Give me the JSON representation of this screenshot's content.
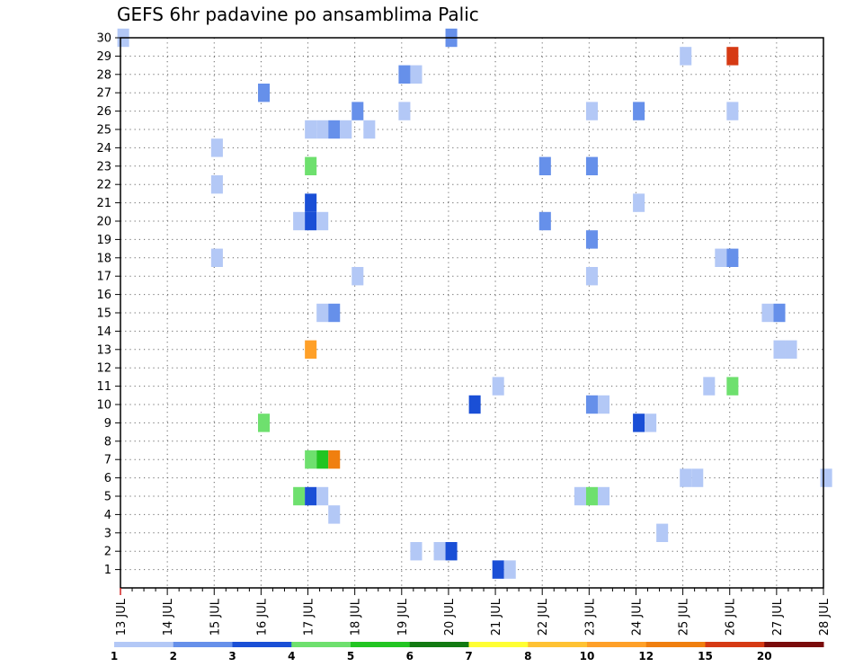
{
  "title": "GEFS 6hr padavine po ansamblima Palic",
  "chart_data": {
    "type": "heatmap",
    "title": "GEFS 6hr padavine po ansamblima Palic",
    "x_axis": {
      "ticks": [
        "13 JUL",
        "14 JUL",
        "15 JUL",
        "16 JUL",
        "17 JUL",
        "18 JUL",
        "19 JUL",
        "20 JUL",
        "21 JUL",
        "22 JUL",
        "23 JUL",
        "24 JUL",
        "25 JUL",
        "26 JUL",
        "27 JUL",
        "28 JUL"
      ],
      "range_days": [
        13,
        28
      ],
      "step_hours": 6
    },
    "y_axis": {
      "ticks": [
        "1",
        "2",
        "3",
        "4",
        "5",
        "6",
        "7",
        "8",
        "9",
        "10",
        "11",
        "12",
        "13",
        "14",
        "15",
        "16",
        "17",
        "18",
        "19",
        "20",
        "21",
        "22",
        "23",
        "24",
        "25",
        "26",
        "27",
        "28",
        "29",
        "30"
      ],
      "range": [
        0,
        30
      ]
    },
    "grid": "dotted",
    "colorbar": {
      "labels": [
        "1",
        "2",
        "3",
        "4",
        "5",
        "6",
        "7",
        "8",
        "10",
        "12",
        "15",
        "20"
      ],
      "colors": [
        "#b3c8f6",
        "#6690ea",
        "#1a4fd6",
        "#6ee06e",
        "#22c522",
        "#127a12",
        "#ffff33",
        "#ffc233",
        "#ffa028",
        "#f07f0f",
        "#d63a14",
        "#7a0b0b"
      ]
    },
    "cells": [
      {
        "day": 13.06,
        "member": 30,
        "value": 1
      },
      {
        "day": 20.06,
        "member": 30,
        "value": 2
      },
      {
        "day": 25.06,
        "member": 29,
        "value": 1
      },
      {
        "day": 26.06,
        "member": 29,
        "value": 15
      },
      {
        "day": 19.06,
        "member": 28,
        "value": 2
      },
      {
        "day": 19.31,
        "member": 28,
        "value": 1
      },
      {
        "day": 16.06,
        "member": 27,
        "value": 2
      },
      {
        "day": 18.06,
        "member": 26,
        "value": 2
      },
      {
        "day": 19.06,
        "member": 26,
        "value": 1
      },
      {
        "day": 23.06,
        "member": 26,
        "value": 1
      },
      {
        "day": 24.06,
        "member": 26,
        "value": 2
      },
      {
        "day": 26.06,
        "member": 26,
        "value": 1
      },
      {
        "day": 17.06,
        "member": 25,
        "value": 1
      },
      {
        "day": 17.31,
        "member": 25,
        "value": 1
      },
      {
        "day": 17.56,
        "member": 25,
        "value": 2
      },
      {
        "day": 17.81,
        "member": 25,
        "value": 1
      },
      {
        "day": 18.31,
        "member": 25,
        "value": 1
      },
      {
        "day": 15.06,
        "member": 24,
        "value": 1
      },
      {
        "day": 17.06,
        "member": 23,
        "value": 4
      },
      {
        "day": 22.06,
        "member": 23,
        "value": 2
      },
      {
        "day": 23.06,
        "member": 23,
        "value": 2
      },
      {
        "day": 15.06,
        "member": 22,
        "value": 1
      },
      {
        "day": 17.06,
        "member": 21,
        "value": 3
      },
      {
        "day": 24.06,
        "member": 21,
        "value": 1
      },
      {
        "day": 16.81,
        "member": 20,
        "value": 1
      },
      {
        "day": 17.06,
        "member": 20,
        "value": 3
      },
      {
        "day": 17.31,
        "member": 20,
        "value": 1
      },
      {
        "day": 22.06,
        "member": 20,
        "value": 2
      },
      {
        "day": 23.06,
        "member": 19,
        "value": 2
      },
      {
        "day": 15.06,
        "member": 18,
        "value": 1
      },
      {
        "day": 25.81,
        "member": 18,
        "value": 1
      },
      {
        "day": 26.06,
        "member": 18,
        "value": 2
      },
      {
        "day": 18.06,
        "member": 17,
        "value": 1
      },
      {
        "day": 23.06,
        "member": 17,
        "value": 1
      },
      {
        "day": 17.31,
        "member": 15,
        "value": 1
      },
      {
        "day": 17.56,
        "member": 15,
        "value": 2
      },
      {
        "day": 26.81,
        "member": 15,
        "value": 1
      },
      {
        "day": 27.06,
        "member": 15,
        "value": 2
      },
      {
        "day": 17.06,
        "member": 13,
        "value": 10
      },
      {
        "day": 27.06,
        "member": 13,
        "value": 1
      },
      {
        "day": 27.31,
        "member": 13,
        "value": 1
      },
      {
        "day": 21.06,
        "member": 11,
        "value": 1
      },
      {
        "day": 25.56,
        "member": 11,
        "value": 1
      },
      {
        "day": 26.06,
        "member": 11,
        "value": 4
      },
      {
        "day": 20.56,
        "member": 10,
        "value": 3
      },
      {
        "day": 23.06,
        "member": 10,
        "value": 2
      },
      {
        "day": 23.31,
        "member": 10,
        "value": 1
      },
      {
        "day": 16.06,
        "member": 9,
        "value": 4
      },
      {
        "day": 24.06,
        "member": 9,
        "value": 3
      },
      {
        "day": 24.31,
        "member": 9,
        "value": 1
      },
      {
        "day": 17.06,
        "member": 7,
        "value": 4
      },
      {
        "day": 17.31,
        "member": 7,
        "value": 5
      },
      {
        "day": 17.56,
        "member": 7,
        "value": 12
      },
      {
        "day": 25.06,
        "member": 6,
        "value": 1
      },
      {
        "day": 25.31,
        "member": 6,
        "value": 1
      },
      {
        "day": 28.06,
        "member": 6,
        "value": 1
      },
      {
        "day": 16.81,
        "member": 5,
        "value": 4
      },
      {
        "day": 17.06,
        "member": 5,
        "value": 3
      },
      {
        "day": 17.31,
        "member": 5,
        "value": 1
      },
      {
        "day": 22.81,
        "member": 5,
        "value": 1
      },
      {
        "day": 23.06,
        "member": 5,
        "value": 4
      },
      {
        "day": 23.31,
        "member": 5,
        "value": 1
      },
      {
        "day": 17.56,
        "member": 4,
        "value": 1
      },
      {
        "day": 24.56,
        "member": 3,
        "value": 1
      },
      {
        "day": 19.31,
        "member": 2,
        "value": 1
      },
      {
        "day": 19.81,
        "member": 2,
        "value": 1
      },
      {
        "day": 20.06,
        "member": 2,
        "value": 3
      },
      {
        "day": 21.06,
        "member": 1,
        "value": 3
      },
      {
        "day": 21.31,
        "member": 1,
        "value": 1
      }
    ]
  }
}
